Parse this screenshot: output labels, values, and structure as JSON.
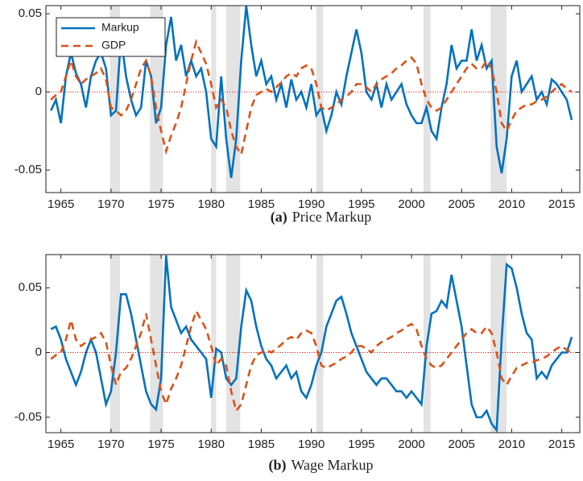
{
  "chart_data": [
    {
      "type": "line",
      "panel_label": "(a)",
      "title": "Price Markup",
      "xlim": [
        1963.5,
        2016.8
      ],
      "xticks": [
        1965,
        1970,
        1975,
        1980,
        1985,
        1990,
        1995,
        2000,
        2005,
        2010,
        2015
      ],
      "ylim": [
        -0.0644,
        0.0552
      ],
      "yticks": [
        -0.05,
        0,
        0.05
      ],
      "zero_line": true,
      "legend": "upper-left",
      "shaded_regions": [
        [
          1969.9,
          1970.9
        ],
        [
          1973.9,
          1975.2
        ],
        [
          1980,
          1980.5
        ],
        [
          1981.5,
          1982.9
        ],
        [
          1990.5,
          1991.2
        ],
        [
          2001.2,
          2001.9
        ],
        [
          2007.9,
          2009.5
        ]
      ],
      "x": [
        1964,
        1964.5,
        1965,
        1965.5,
        1966,
        1966.5,
        1967,
        1967.5,
        1968,
        1968.5,
        1969,
        1969.5,
        1970,
        1970.5,
        1971,
        1971.5,
        1972,
        1972.5,
        1973,
        1973.5,
        1974,
        1974.5,
        1975,
        1975.5,
        1976,
        1976.5,
        1977,
        1977.5,
        1978,
        1978.5,
        1979,
        1979.5,
        1980,
        1980.5,
        1981,
        1981.5,
        1982,
        1982.5,
        1983,
        1983.5,
        1984,
        1984.5,
        1985,
        1985.5,
        1986,
        1986.5,
        1987,
        1987.5,
        1988,
        1988.5,
        1989,
        1989.5,
        1990,
        1990.5,
        1991,
        1991.5,
        1992,
        1992.5,
        1993,
        1993.5,
        1994,
        1994.5,
        1995,
        1995.5,
        1996,
        1996.5,
        1997,
        1997.5,
        1998,
        1998.5,
        1999,
        1999.5,
        2000,
        2000.5,
        2001,
        2001.5,
        2002,
        2002.5,
        2003,
        2003.5,
        2004,
        2004.5,
        2005,
        2005.5,
        2006,
        2006.5,
        2007,
        2007.5,
        2008,
        2008.5,
        2009,
        2009.5,
        2010,
        2010.5,
        2011,
        2011.5,
        2012,
        2012.5,
        2013,
        2013.5,
        2014,
        2014.5,
        2015,
        2015.5,
        2016
      ],
      "series": [
        {
          "name": "Markup",
          "color": "#0072bd",
          "style": "solid",
          "values": [
            -0.012,
            -0.005,
            -0.02,
            0.01,
            0.025,
            0.012,
            0.005,
            -0.01,
            0.01,
            0.02,
            0.025,
            0.015,
            -0.015,
            -0.012,
            0.035,
            0.01,
            -0.005,
            -0.015,
            -0.01,
            0.02,
            0.01,
            -0.02,
            -0.01,
            0.03,
            0.048,
            0.02,
            0.03,
            0.01,
            0.02,
            0.01,
            0.015,
            0,
            -0.03,
            -0.035,
            0.01,
            -0.03,
            -0.055,
            -0.03,
            0.02,
            0.055,
            0.03,
            0.01,
            0.02,
            0.005,
            0.01,
            -0.005,
            0.005,
            -0.01,
            0.008,
            -0.005,
            0,
            -0.01,
            0.005,
            -0.015,
            -0.01,
            -0.025,
            -0.015,
            0,
            -0.008,
            0.01,
            0.025,
            0.04,
            0.025,
            0,
            -0.005,
            0.005,
            -0.01,
            0.005,
            -0.005,
            0,
            0.005,
            -0.008,
            -0.015,
            -0.02,
            -0.02,
            -0.01,
            -0.025,
            -0.03,
            -0.01,
            0.005,
            0.03,
            0.015,
            0.02,
            0.02,
            0.04,
            0.02,
            0.03,
            0.015,
            0.02,
            -0.035,
            -0.052,
            -0.03,
            0.01,
            0.02,
            0,
            0.005,
            0.01,
            -0.005,
            0,
            -0.008,
            0.008,
            0.005,
            0,
            -0.005,
            -0.018
          ]
        },
        {
          "name": "GDP",
          "color": "#d95319",
          "style": "dashed",
          "values": [
            -0.005,
            -0.002,
            0,
            0.01,
            0.02,
            0.01,
            0.005,
            0.008,
            0.01,
            0.012,
            0.015,
            0.008,
            -0.01,
            -0.012,
            -0.015,
            -0.012,
            -0.005,
            0.005,
            0.015,
            0.02,
            0.01,
            -0.01,
            -0.025,
            -0.038,
            -0.028,
            -0.02,
            -0.01,
            0.005,
            0.02,
            0.032,
            0.025,
            0.018,
            0.005,
            -0.01,
            -0.005,
            -0.01,
            -0.025,
            -0.035,
            -0.04,
            -0.025,
            -0.01,
            -0.002,
            0,
            0.002,
            0,
            0.003,
            0.006,
            0.01,
            0.012,
            0.01,
            0.015,
            0.017,
            0.015,
            0.005,
            -0.01,
            -0.012,
            -0.01,
            -0.008,
            -0.005,
            -0.003,
            0,
            0.005,
            0.005,
            0.003,
            0,
            0.005,
            0.008,
            0.01,
            0.012,
            0.015,
            0.017,
            0.02,
            0.022,
            0.018,
            0.005,
            -0.005,
            -0.01,
            -0.012,
            -0.01,
            -0.005,
            0,
            0.005,
            0.01,
            0.015,
            0.018,
            0.015,
            0.015,
            0.02,
            0.015,
            0,
            -0.02,
            -0.025,
            -0.018,
            -0.012,
            -0.01,
            -0.008,
            -0.008,
            -0.006,
            -0.005,
            -0.003,
            0,
            0.003,
            0.005,
            0.002,
            0
          ]
        }
      ]
    },
    {
      "type": "line",
      "panel_label": "(b)",
      "title": "Wage Markup",
      "xlim": [
        1963.5,
        2016.8
      ],
      "xticks": [
        1965,
        1970,
        1975,
        1980,
        1985,
        1990,
        1995,
        2000,
        2005,
        2010,
        2015
      ],
      "ylim": [
        -0.0619,
        0.0756
      ],
      "yticks": [
        -0.05,
        0,
        0.05
      ],
      "zero_line": true,
      "shaded_regions": [
        [
          1969.9,
          1970.9
        ],
        [
          1973.9,
          1975.2
        ],
        [
          1980,
          1980.5
        ],
        [
          1981.5,
          1982.9
        ],
        [
          1990.5,
          1991.2
        ],
        [
          2001.2,
          2001.9
        ],
        [
          2007.9,
          2009.5
        ]
      ],
      "x": [
        1964,
        1964.5,
        1965,
        1965.5,
        1966,
        1966.5,
        1967,
        1967.5,
        1968,
        1968.5,
        1969,
        1969.5,
        1970,
        1970.5,
        1971,
        1971.5,
        1972,
        1972.5,
        1973,
        1973.5,
        1974,
        1974.5,
        1975,
        1975.5,
        1976,
        1976.5,
        1977,
        1977.5,
        1978,
        1978.5,
        1979,
        1979.5,
        1980,
        1980.5,
        1981,
        1981.5,
        1982,
        1982.5,
        1983,
        1983.5,
        1984,
        1984.5,
        1985,
        1985.5,
        1986,
        1986.5,
        1987,
        1987.5,
        1988,
        1988.5,
        1989,
        1989.5,
        1990,
        1990.5,
        1991,
        1991.5,
        1992,
        1992.5,
        1993,
        1993.5,
        1994,
        1994.5,
        1995,
        1995.5,
        1996,
        1996.5,
        1997,
        1997.5,
        1998,
        1998.5,
        1999,
        1999.5,
        2000,
        2000.5,
        2001,
        2001.5,
        2002,
        2002.5,
        2003,
        2003.5,
        2004,
        2004.5,
        2005,
        2005.5,
        2006,
        2006.5,
        2007,
        2007.5,
        2008,
        2008.5,
        2009,
        2009.5,
        2010,
        2010.5,
        2011,
        2011.5,
        2012,
        2012.5,
        2013,
        2013.5,
        2014,
        2014.5,
        2015,
        2015.5,
        2016
      ],
      "series": [
        {
          "name": "Markup",
          "color": "#0072bd",
          "style": "solid",
          "values": [
            0.018,
            0.02,
            0.01,
            -0.005,
            -0.015,
            -0.025,
            -0.015,
            0,
            0.01,
            0,
            -0.02,
            -0.04,
            -0.03,
            0,
            0.045,
            0.045,
            0.03,
            0.01,
            -0.01,
            -0.03,
            -0.04,
            -0.044,
            -0.02,
            0.075,
            0.035,
            0.025,
            0.015,
            0.02,
            0.01,
            0.005,
            0,
            -0.005,
            -0.035,
            0.003,
            0,
            -0.02,
            -0.025,
            -0.02,
            0.02,
            0.048,
            0.04,
            0.02,
            0.005,
            -0.005,
            -0.01,
            -0.02,
            -0.015,
            -0.01,
            -0.02,
            -0.015,
            -0.03,
            -0.035,
            -0.025,
            -0.01,
            0,
            0.02,
            0.03,
            0.04,
            0.043,
            0.03,
            0.015,
            0.005,
            -0.005,
            -0.015,
            -0.02,
            -0.025,
            -0.02,
            -0.02,
            -0.025,
            -0.03,
            -0.03,
            -0.035,
            -0.03,
            -0.035,
            -0.04,
            0.005,
            0.03,
            0.032,
            0.04,
            0.035,
            0.06,
            0.04,
            0.02,
            -0.01,
            -0.04,
            -0.05,
            -0.05,
            -0.045,
            -0.055,
            -0.06,
            0.01,
            0.068,
            0.065,
            0.05,
            0.03,
            0.015,
            0.01,
            -0.02,
            -0.015,
            -0.02,
            -0.01,
            -0.005,
            0,
            0,
            0.012
          ]
        },
        {
          "name": "GDP",
          "color": "#d95319",
          "style": "dashed",
          "values": [
            -0.005,
            -0.002,
            0,
            0.01,
            0.025,
            0.01,
            0.005,
            0.008,
            0.01,
            0.012,
            0.015,
            0.008,
            -0.01,
            -0.025,
            -0.015,
            -0.012,
            -0.005,
            0.005,
            0.015,
            0.03,
            0.01,
            -0.01,
            -0.03,
            -0.04,
            -0.028,
            -0.02,
            -0.01,
            0.005,
            0.02,
            0.032,
            0.025,
            0.018,
            0.005,
            -0.01,
            -0.005,
            -0.01,
            -0.03,
            -0.045,
            -0.04,
            -0.025,
            -0.01,
            -0.002,
            0,
            0.002,
            0,
            0.003,
            0.006,
            0.01,
            0.012,
            0.01,
            0.015,
            0.017,
            0.015,
            0.005,
            -0.01,
            -0.012,
            -0.01,
            -0.008,
            -0.005,
            -0.003,
            0,
            0.005,
            0.005,
            0.003,
            0,
            0.005,
            0.008,
            0.01,
            0.012,
            0.015,
            0.017,
            0.02,
            0.022,
            0.018,
            0.005,
            -0.005,
            -0.01,
            -0.012,
            -0.01,
            -0.005,
            0,
            0.005,
            0.01,
            0.015,
            0.018,
            0.015,
            0.015,
            0.02,
            0.015,
            0,
            -0.02,
            -0.025,
            -0.018,
            -0.012,
            -0.01,
            -0.008,
            -0.008,
            -0.006,
            -0.005,
            -0.003,
            0,
            0.003,
            0.005,
            0.002,
            0
          ]
        }
      ]
    }
  ]
}
